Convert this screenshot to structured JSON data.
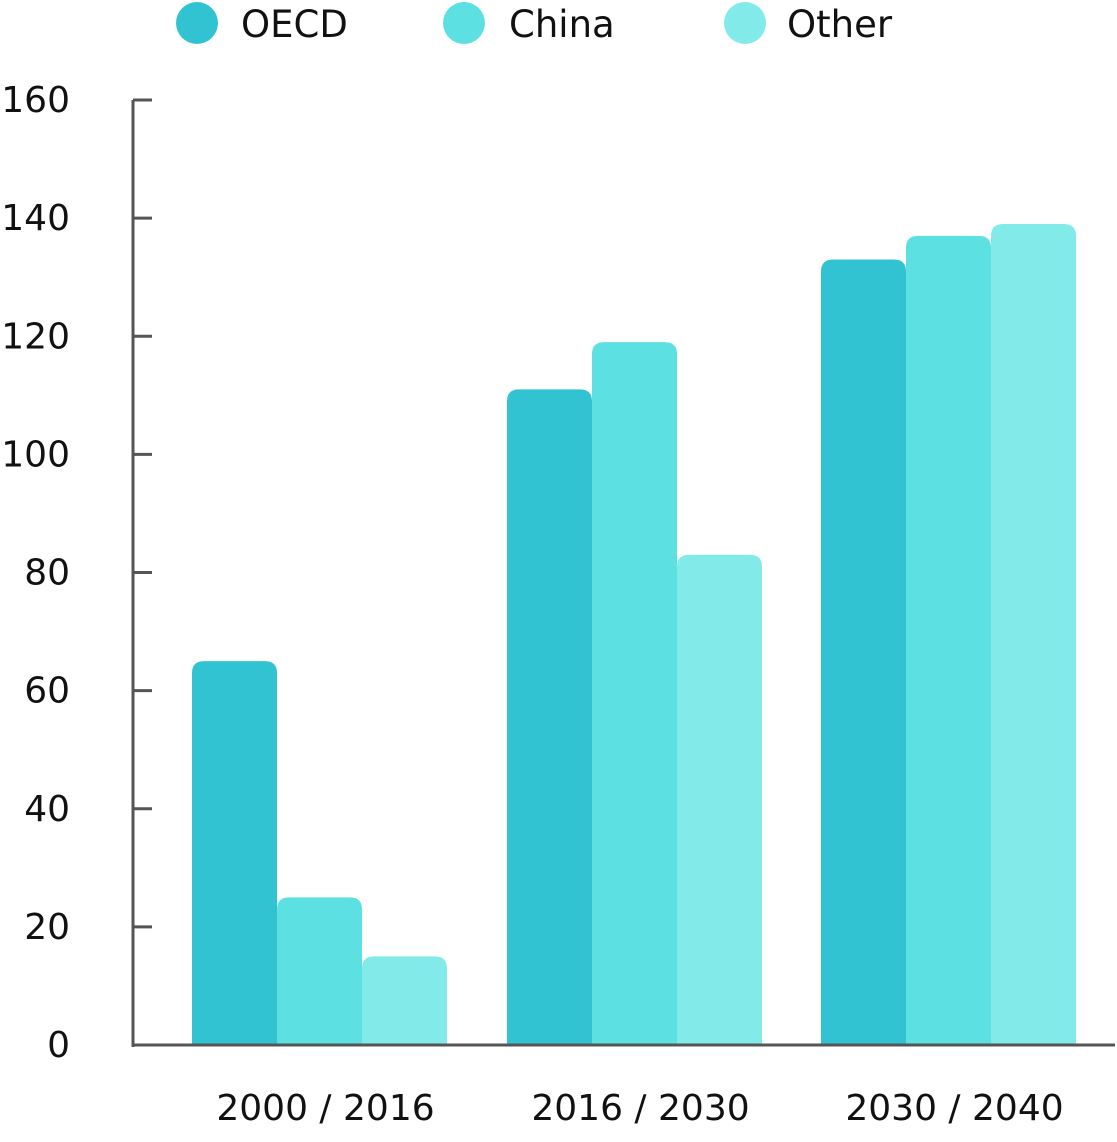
{
  "chart_data": {
    "type": "bar",
    "title": "",
    "xlabel": "",
    "ylabel": "",
    "categories": [
      "2000 / 2016",
      "2016 / 2030",
      "2030 / 2040"
    ],
    "series": [
      {
        "name": "OECD",
        "values": [
          65,
          111,
          133
        ]
      },
      {
        "name": "China",
        "values": [
          25,
          119,
          137
        ]
      },
      {
        "name": "Other",
        "values": [
          15,
          83,
          139
        ]
      }
    ],
    "ylim": [
      0,
      160
    ],
    "yticks": [
      0,
      20,
      40,
      60,
      80,
      100,
      120,
      140,
      160
    ],
    "grid": false,
    "legend": "top",
    "colors": {
      "OECD": "#32c3d2",
      "China": "#5de0e1",
      "Other": "#82ebea",
      "axis": "#555555"
    }
  }
}
